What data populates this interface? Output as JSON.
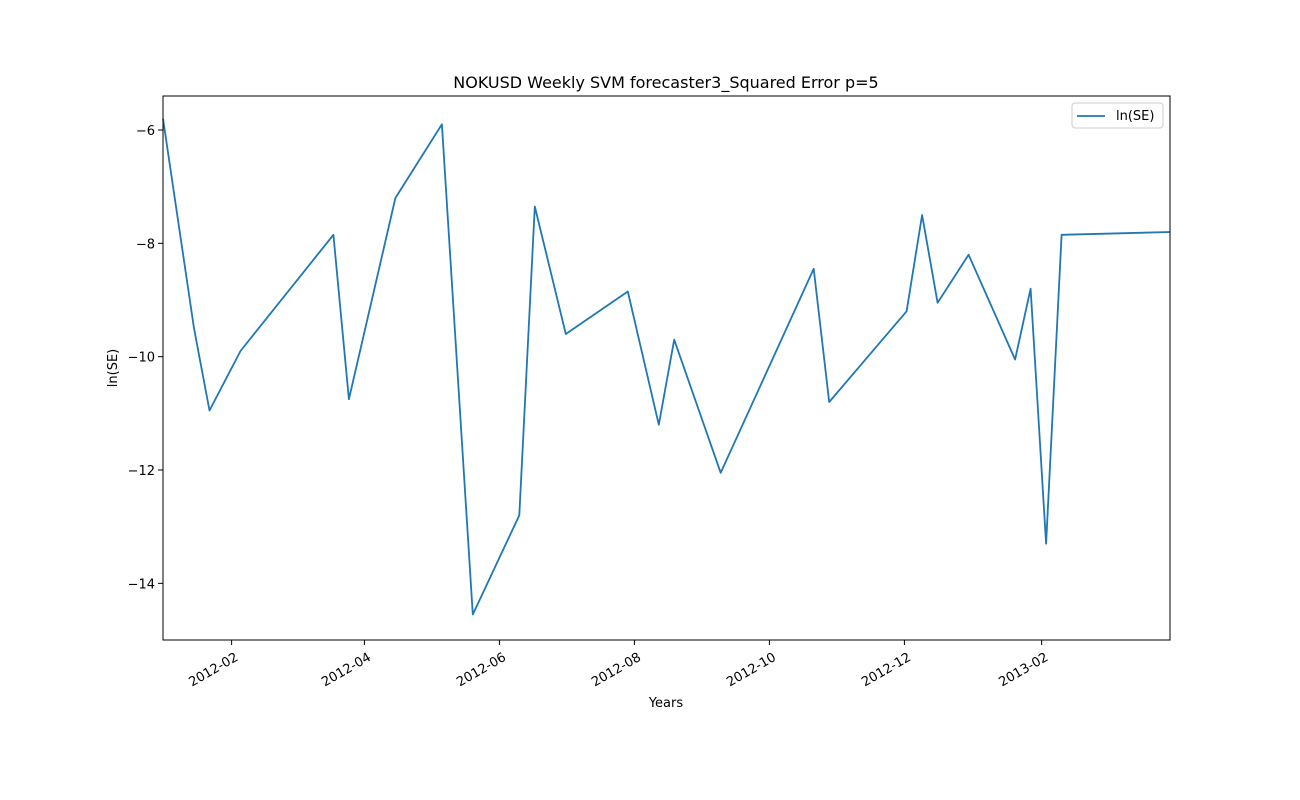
{
  "chart_data": {
    "type": "line",
    "title": "NOKUSD Weekly SVM forecaster3_Squared Error p=5",
    "xlabel": "Years",
    "ylabel": "ln(SE)",
    "xlim": [
      "2012-01-01",
      "2013-03-31"
    ],
    "ylim": [
      -15.0,
      -5.4
    ],
    "xticks": [
      "2012-02-01",
      "2012-04-01",
      "2012-06-01",
      "2012-08-01",
      "2012-10-01",
      "2012-12-01",
      "2013-02-01"
    ],
    "xtick_labels": [
      "2012-02",
      "2012-04",
      "2012-06",
      "2012-08",
      "2012-10",
      "2012-12",
      "2013-02"
    ],
    "yticks": [
      -14,
      -12,
      -10,
      -8,
      -6
    ],
    "ytick_labels": [
      "−14",
      "−12",
      "−10",
      "−8",
      "−6"
    ],
    "grid": false,
    "legend_position": "upper right",
    "series": [
      {
        "name": "ln(SE)",
        "color": "#1f77b4",
        "points": [
          [
            "2012-01-01",
            -5.8
          ],
          [
            "2012-01-15",
            -9.5
          ],
          [
            "2012-01-22",
            -10.95
          ],
          [
            "2012-02-05",
            -9.9
          ],
          [
            "2012-03-18",
            -7.85
          ],
          [
            "2012-03-25",
            -10.75
          ],
          [
            "2012-04-15",
            -7.2
          ],
          [
            "2012-05-06",
            -5.9
          ],
          [
            "2012-05-20",
            -14.55
          ],
          [
            "2012-06-10",
            -12.8
          ],
          [
            "2012-06-17",
            -7.35
          ],
          [
            "2012-07-01",
            -9.6
          ],
          [
            "2012-07-29",
            -8.85
          ],
          [
            "2012-08-12",
            -11.2
          ],
          [
            "2012-08-19",
            -9.7
          ],
          [
            "2012-09-09",
            -12.05
          ],
          [
            "2012-10-21",
            -8.45
          ],
          [
            "2012-10-28",
            -10.8
          ],
          [
            "2012-12-02",
            -9.2
          ],
          [
            "2012-12-09",
            -7.5
          ],
          [
            "2012-12-16",
            -9.05
          ],
          [
            "2012-12-30",
            -8.2
          ],
          [
            "2013-01-20",
            -10.05
          ],
          [
            "2013-01-27",
            -8.8
          ],
          [
            "2013-02-03",
            -13.3
          ],
          [
            "2013-02-10",
            -7.85
          ],
          [
            "2013-03-31",
            -7.8
          ]
        ]
      }
    ]
  }
}
